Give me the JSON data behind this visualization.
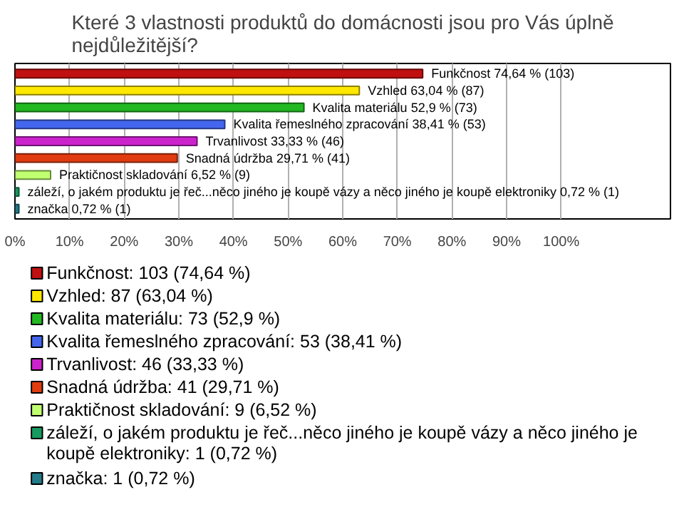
{
  "chart_data": {
    "type": "bar",
    "orientation": "horizontal",
    "title": "Které 3 vlastnosti produktů do domácnosti jsou pro Vás úplně nejdůležitější?",
    "categories": [
      null,
      null,
      null,
      null,
      null,
      null,
      null,
      null,
      null
    ],
    "series": [
      {
        "name": "Funkčnost: 103 (74,64 %)",
        "color": "#c01010",
        "values": [
          74.64,
          null,
          null,
          null,
          null,
          null,
          null,
          null,
          null
        ],
        "value_labels": [
          "Funkčnost 74,64 % (103)",
          null,
          null,
          null,
          null,
          null,
          null,
          null,
          null
        ]
      },
      {
        "name": "Vzhled: 87 (63,04 %)",
        "color": "#ffe800",
        "values": [
          null,
          63.04,
          null,
          null,
          null,
          null,
          null,
          null,
          null
        ],
        "value_labels": [
          null,
          "Vzhled 63,04 % (87)",
          null,
          null,
          null,
          null,
          null,
          null,
          null
        ]
      },
      {
        "name": "Kvalita materiálu: 73 (52,9 %)",
        "color": "#22b822",
        "values": [
          null,
          null,
          52.9,
          null,
          null,
          null,
          null,
          null,
          null
        ],
        "value_labels": [
          null,
          null,
          "Kvalita materiálu 52,9 % (73)",
          null,
          null,
          null,
          null,
          null,
          null
        ]
      },
      {
        "name": "Kvalita řemeslného zpracování: 53 (38,41 %)",
        "color": "#4466ee",
        "values": [
          null,
          null,
          null,
          38.41,
          null,
          null,
          null,
          null,
          null
        ],
        "value_labels": [
          null,
          null,
          null,
          "Kvalita řemeslného zpracování 38,41 % (53)",
          null,
          null,
          null,
          null,
          null
        ]
      },
      {
        "name": "Trvanlivost: 46 (33,33 %)",
        "color": "#cc22cc",
        "values": [
          null,
          null,
          null,
          null,
          33.33,
          null,
          null,
          null,
          null
        ],
        "value_labels": [
          null,
          null,
          null,
          null,
          "Trvanlivost 33,33 % (46)",
          null,
          null,
          null,
          null
        ]
      },
      {
        "name": "Snadná údržba: 41 (29,71 %)",
        "color": "#e03c10",
        "values": [
          null,
          null,
          null,
          null,
          null,
          29.71,
          null,
          null,
          null
        ],
        "value_labels": [
          null,
          null,
          null,
          null,
          null,
          "Snadná údržba 29,71 % (41)",
          null,
          null,
          null
        ]
      },
      {
        "name": "Praktičnost skladování: 9 (6,52 %)",
        "color": "#c0ff70",
        "values": [
          null,
          null,
          null,
          null,
          null,
          null,
          6.52,
          null,
          null
        ],
        "value_labels": [
          null,
          null,
          null,
          null,
          null,
          null,
          "Praktičnost skladování 6,52 % (9)",
          null,
          null
        ]
      },
      {
        "name": "záleží, o jakém produktu je řeč...něco jiného je koupě vázy a něco jiného je koupě elektroniky: 1 (0,72 %)",
        "color": "#179a60",
        "values": [
          null,
          null,
          null,
          null,
          null,
          null,
          null,
          0.72,
          null
        ],
        "value_labels": [
          null,
          null,
          null,
          null,
          null,
          null,
          null,
          "záleží, o jakém produktu je řeč...něco jiného je koupě vázy a něco jiného je koupě elektroniky 0,72 % (1)",
          null
        ]
      },
      {
        "name": "značka: 1 (0,72 %)",
        "color": "#237a88",
        "values": [
          null,
          null,
          null,
          null,
          null,
          null,
          null,
          null,
          0.72
        ],
        "value_labels": [
          null,
          null,
          null,
          null,
          null,
          null,
          null,
          null,
          "značka 0,72 % (1)"
        ]
      }
    ],
    "xlim": [
      0,
      120
    ],
    "xticks": [
      {
        "value": 0,
        "label": "0%"
      },
      {
        "value": 10,
        "label": "10%"
      },
      {
        "value": 20,
        "label": "20%"
      },
      {
        "value": 30,
        "label": "30%"
      },
      {
        "value": 40,
        "label": "40%"
      },
      {
        "value": 50,
        "label": "50%"
      },
      {
        "value": 60,
        "label": "60%"
      },
      {
        "value": 70,
        "label": "70%"
      },
      {
        "value": 80,
        "label": "80%"
      },
      {
        "value": 90,
        "label": "90%"
      },
      {
        "value": 100,
        "label": "100%"
      }
    ],
    "grid": "x",
    "legend": "bottom"
  }
}
